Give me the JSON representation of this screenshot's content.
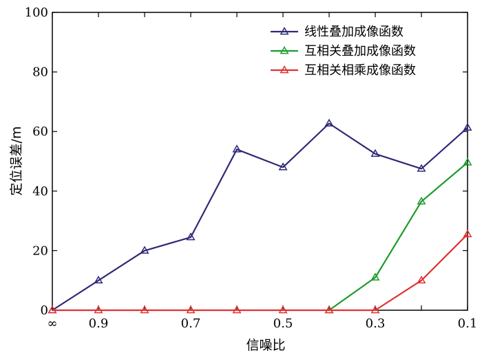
{
  "chart_data": {
    "type": "line",
    "title": "",
    "xlabel": "信噪比",
    "ylabel": "定位误差/m",
    "x_tick_labels": [
      "∞",
      "0.9",
      "0.7",
      "0.5",
      "0.3",
      "0.1"
    ],
    "x": [
      "∞",
      "0.9",
      "0.8",
      "0.7",
      "0.6",
      "0.5",
      "0.4",
      "0.3",
      "0.2",
      "0.1"
    ],
    "ylim": [
      0,
      100
    ],
    "y_ticks": [
      0,
      20,
      40,
      60,
      80,
      100
    ],
    "y_tick_labels": [
      "0",
      "20",
      "40",
      "60",
      "80",
      "100"
    ],
    "grid": false,
    "legend_position": "top-right",
    "series": [
      {
        "name": "线性叠加成像函数",
        "color": "#2e2878",
        "marker": "triangle-open",
        "values": [
          0,
          10,
          20,
          24.5,
          54,
          48,
          62.7,
          52.5,
          47.5,
          61.3
        ]
      },
      {
        "name": "互相关叠加成像函数",
        "color": "#1a9a2a",
        "marker": "triangle-open",
        "values": [
          null,
          null,
          null,
          null,
          null,
          null,
          0,
          11,
          36.5,
          49.6
        ]
      },
      {
        "name": "互相关相乘成像函数",
        "color": "#e03030",
        "marker": "triangle-open",
        "values": [
          0,
          0,
          0,
          0,
          0,
          0,
          0,
          0,
          10,
          25.5
        ]
      }
    ]
  }
}
